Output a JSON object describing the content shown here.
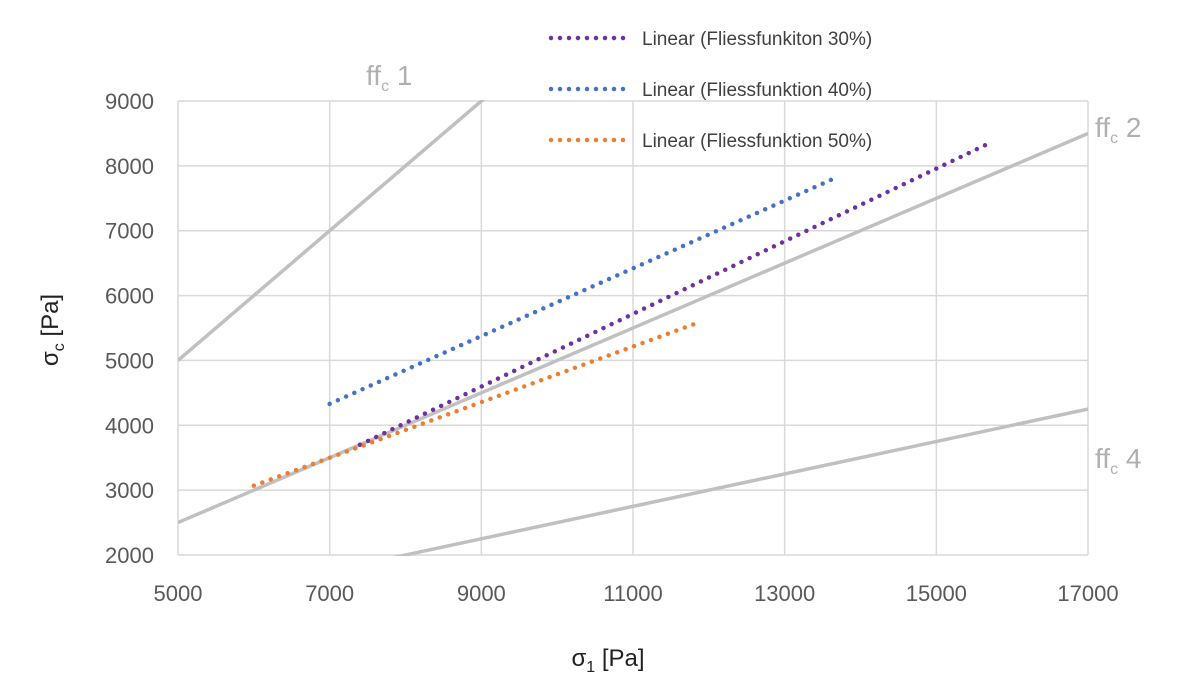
{
  "chart_data": {
    "type": "line",
    "xlabel": {
      "main": "σ",
      "sub": "1",
      "unit": " [Pa]"
    },
    "ylabel": {
      "main": "σ",
      "sub": "c",
      "unit": " [Pa]"
    },
    "xlim": [
      5000,
      17000
    ],
    "ylim": [
      2000,
      9000
    ],
    "x_ticks": [
      5000,
      7000,
      9000,
      11000,
      13000,
      15000,
      17000
    ],
    "y_ticks": [
      2000,
      3000,
      4000,
      5000,
      6000,
      7000,
      8000,
      9000
    ],
    "grid": true,
    "legend_position": "top-right",
    "reference_lines": [
      {
        "main": "ff",
        "sub": "c",
        "num": " 1",
        "ff": 1,
        "color": "#c0c0c0"
      },
      {
        "main": "ff",
        "sub": "c",
        "num": " 2",
        "ff": 2,
        "color": "#c0c0c0"
      },
      {
        "main": "ff",
        "sub": "c",
        "num": " 4",
        "ff": 4,
        "color": "#c0c0c0"
      }
    ],
    "series": [
      {
        "name": "Linear (Fliessfunkiton 30%)",
        "color": "#7030a0",
        "x": [
          7400,
          15700
        ],
        "y": [
          3700,
          8350
        ]
      },
      {
        "name": "Linear (Fliessfunktion 40%)",
        "color": "#4472c4",
        "x": [
          7000,
          13700
        ],
        "y": [
          4330,
          7830
        ]
      },
      {
        "name": "Linear (Fliessfunktion 50%)",
        "color": "#ed7d31",
        "x": [
          6000,
          11900
        ],
        "y": [
          3070,
          5600
        ]
      }
    ]
  }
}
